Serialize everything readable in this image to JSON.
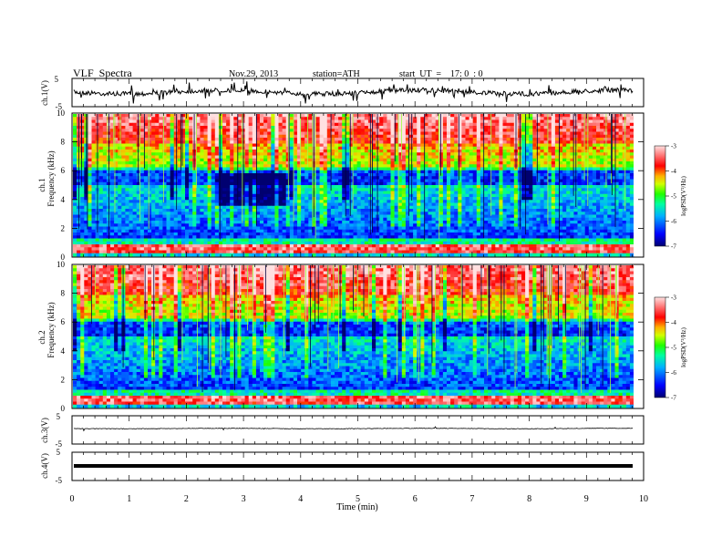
{
  "header": {
    "title": "VLF  Spectra",
    "date": "Nov.29, 2013",
    "station": "station=ATH",
    "start": "start  UT  =    17: 0  : 0"
  },
  "chart_data": [
    {
      "type": "line",
      "panel": "ch1-waveform",
      "ylabel": "ch.1(V)",
      "ylim": [
        -5,
        5
      ],
      "y_ticks": [
        "5",
        "-5"
      ],
      "series_level_approx": 0,
      "xlim": [
        0,
        10
      ]
    },
    {
      "type": "heatmap",
      "panel": "ch1-spectrogram",
      "ylabel": "ch.1\nFrequency  (kHz)",
      "ylabel_line1": "ch.1",
      "ylabel_line2": "Frequency  (kHz)",
      "ylim": [
        0,
        10
      ],
      "y_ticks": [
        "0",
        "2",
        "4",
        "6",
        "8",
        "10"
      ],
      "x_range_min": [
        0,
        9.8
      ],
      "colorbar": {
        "label": "logPSD(V²/Hz)",
        "range": [
          -7,
          -3
        ],
        "ticks": [
          "-3",
          "-4",
          "-5",
          "-6",
          "-7"
        ],
        "colors": [
          "#000080",
          "#0000ff",
          "#00a0ff",
          "#00ffc0",
          "#00ff00",
          "#a0ff00",
          "#ffff00",
          "#ff8000",
          "#ff0000",
          "#ffc0c0"
        ]
      },
      "features": [
        {
          "description": "quiet (low PSD) region",
          "t_start": 2.45,
          "t_end": 3.8,
          "f_low": 3.5,
          "f_high": 5.8
        },
        {
          "description": "strong narrowband line",
          "f_center": 0.5
        }
      ]
    },
    {
      "type": "heatmap",
      "panel": "ch2-spectrogram",
      "ylabel_line1": "ch.2",
      "ylabel_line2": "Frequency  (kHz)",
      "ylim": [
        0,
        10
      ],
      "y_ticks": [
        "0",
        "2",
        "4",
        "6",
        "8",
        "10"
      ],
      "x_range_min": [
        0,
        9.8
      ],
      "colorbar": {
        "label": "logPSD(V²/Hz)",
        "range": [
          -7,
          -3
        ],
        "ticks": [
          "-3",
          "-4",
          "-5",
          "-6",
          "-7"
        ]
      }
    },
    {
      "type": "line",
      "panel": "ch3-waveform",
      "ylabel": "ch.3(V)",
      "ylim": [
        -5,
        5
      ],
      "y_ticks": [
        "5",
        "-5"
      ],
      "series_level_approx": -0.5
    },
    {
      "type": "line",
      "panel": "ch4-waveform",
      "ylabel": "ch.4(V)",
      "ylim": [
        -5,
        5
      ],
      "y_ticks": [
        "5",
        "-5"
      ],
      "series_level_approx": 0,
      "xlabel": "Time  (min)",
      "xlim": [
        0,
        10
      ],
      "x_ticks": [
        "0",
        "1",
        "2",
        "3",
        "4",
        "5",
        "6",
        "7",
        "8",
        "9",
        "10"
      ]
    }
  ]
}
